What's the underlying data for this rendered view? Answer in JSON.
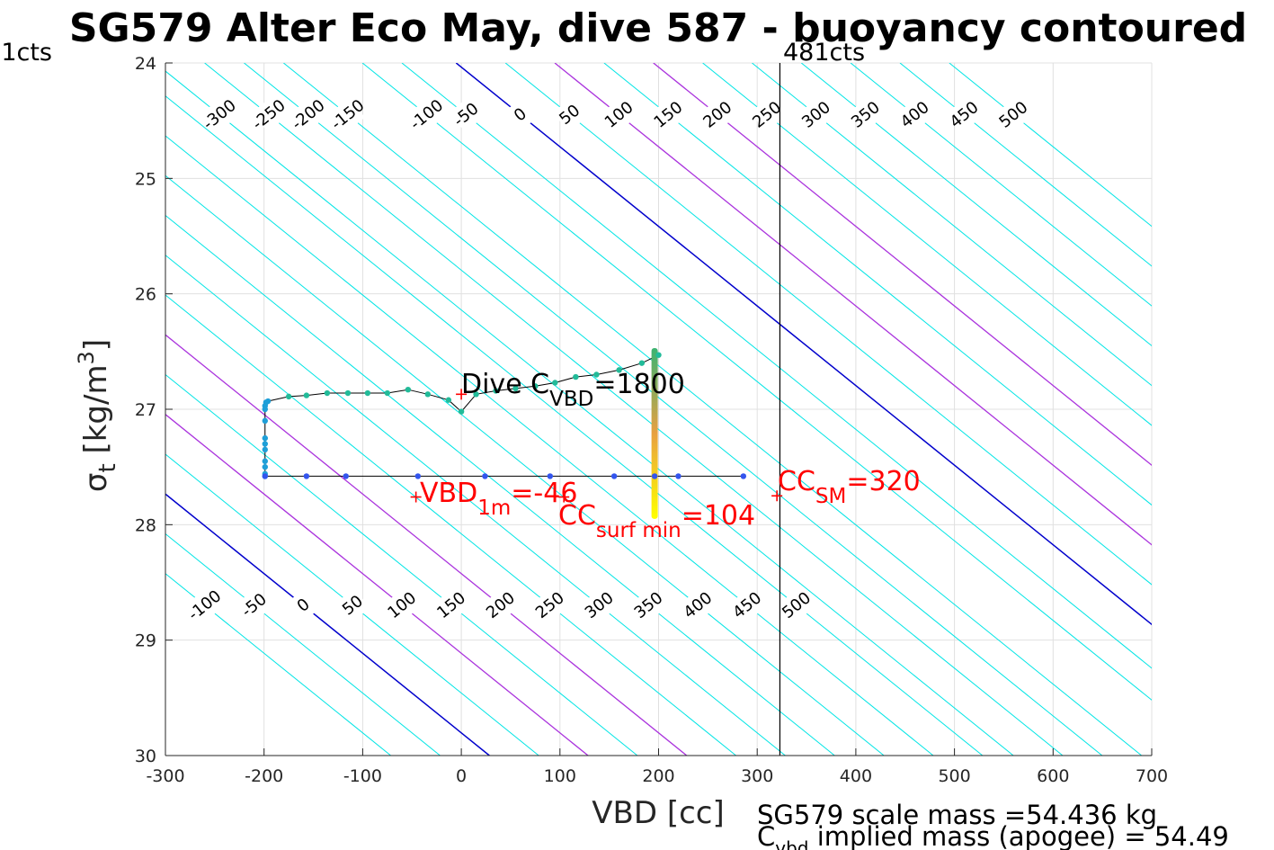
{
  "chart_data": {
    "type": "scatter",
    "title": "SG579 Alter Eco May, dive 587 - buoyancy contoured",
    "xlabel": "VBD [cc]",
    "ylabel_main": "σ",
    "ylabel_sub": "t",
    "ylabel_unit": " [kg/m",
    "ylabel_sup": "3",
    "ylabel_close": "]",
    "xlim": [
      -300,
      700
    ],
    "ylim": [
      24,
      30
    ],
    "y_reversed": true,
    "grid": true,
    "xticks": [
      -300,
      -200,
      -100,
      0,
      100,
      200,
      300,
      400,
      500,
      600,
      700
    ],
    "yticks": [
      24,
      25,
      26,
      27,
      28,
      29,
      30
    ],
    "contour_slope_cc_per_sigma": 145,
    "contours": {
      "upper_anchor_sigma": 24.45,
      "upper_labels": [
        {
          "level": -300,
          "x": -245
        },
        {
          "level": -250,
          "x": -195
        },
        {
          "level": -200,
          "x": -155
        },
        {
          "level": -150,
          "x": -115
        },
        {
          "level": -100,
          "x": -35
        },
        {
          "level": -50,
          "x": 5
        },
        {
          "level": 0,
          "x": 60
        },
        {
          "level": 50,
          "x": 110
        },
        {
          "level": 100,
          "x": 160
        },
        {
          "level": 150,
          "x": 210
        },
        {
          "level": 200,
          "x": 260
        },
        {
          "level": 250,
          "x": 310
        },
        {
          "level": 300,
          "x": 360
        },
        {
          "level": 350,
          "x": 410
        },
        {
          "level": 400,
          "x": 460
        },
        {
          "level": 450,
          "x": 510
        },
        {
          "level": 500,
          "x": 560
        }
      ],
      "lower_anchor_sigma": 28.7,
      "lower_labels": [
        {
          "level": -100,
          "x": -260
        },
        {
          "level": -50,
          "x": -210
        },
        {
          "level": 0,
          "x": -160
        },
        {
          "level": 50,
          "x": -110
        },
        {
          "level": 100,
          "x": -60
        },
        {
          "level": 150,
          "x": -10
        },
        {
          "level": 200,
          "x": 40
        },
        {
          "level": 250,
          "x": 90
        },
        {
          "level": 300,
          "x": 140
        },
        {
          "level": 350,
          "x": 190
        },
        {
          "level": 400,
          "x": 240
        },
        {
          "level": 450,
          "x": 290
        },
        {
          "level": 500,
          "x": 340
        }
      ],
      "zero_color": "#0000cc",
      "highlight_levels": [
        100,
        200
      ],
      "highlight_color": "#aa33dd",
      "other_color": "#00e5e5"
    },
    "vertical_line": {
      "x": 323,
      "label_left": "1cts",
      "label_right": "481cts"
    },
    "descent_trace": [
      {
        "x": 200,
        "y": 26.53
      },
      {
        "x": 183,
        "y": 26.6
      },
      {
        "x": 160,
        "y": 26.66
      },
      {
        "x": 137,
        "y": 26.7
      },
      {
        "x": 116,
        "y": 26.72
      },
      {
        "x": 95,
        "y": 26.77
      },
      {
        "x": 75,
        "y": 26.8
      },
      {
        "x": 55,
        "y": 26.82
      },
      {
        "x": 35,
        "y": 26.84
      },
      {
        "x": 15,
        "y": 26.87
      },
      {
        "x": 0,
        "y": 27.02
      },
      {
        "x": -13,
        "y": 26.92
      },
      {
        "x": -34,
        "y": 26.87
      },
      {
        "x": -54,
        "y": 26.83
      },
      {
        "x": -75,
        "y": 26.86
      },
      {
        "x": -95,
        "y": 26.86
      },
      {
        "x": -115,
        "y": 26.86
      },
      {
        "x": -136,
        "y": 26.86
      },
      {
        "x": -157,
        "y": 26.88
      },
      {
        "x": -175,
        "y": 26.89
      },
      {
        "x": -196,
        "y": 26.93
      },
      {
        "x": -198,
        "y": 26.94
      },
      {
        "x": -199,
        "y": 26.97
      },
      {
        "x": -199,
        "y": 27.3
      },
      {
        "x": -199,
        "y": 27.56
      },
      {
        "x": -199,
        "y": 27.58
      }
    ],
    "ascent_trace": [
      {
        "x": -199,
        "y": 27.58
      },
      {
        "x": -157,
        "y": 27.58
      },
      {
        "x": -117,
        "y": 27.58
      },
      {
        "x": -44,
        "y": 27.58
      },
      {
        "x": 24,
        "y": 27.58
      },
      {
        "x": 90,
        "y": 27.58
      },
      {
        "x": 155,
        "y": 27.58
      },
      {
        "x": 196,
        "y": 27.58
      },
      {
        "x": 220,
        "y": 27.58
      },
      {
        "x": 286,
        "y": 27.58
      }
    ],
    "surface_bar": {
      "x": 196,
      "y_start": 26.47,
      "y_end": 27.95
    },
    "markers": [
      {
        "x": 0,
        "y": 26.87,
        "color": "#ff0000"
      },
      {
        "x": -46,
        "y": 27.76,
        "color": "#ff0000"
      },
      {
        "x": 104,
        "y": 27.76,
        "color": "#ff0000"
      },
      {
        "x": 320,
        "y": 27.75,
        "color": "#ff0000"
      }
    ],
    "annotations": {
      "dive_c_vbd": {
        "main": "Dive C",
        "sub": "VBD",
        "value": "=1800"
      },
      "vbd_1m": {
        "main": "VBD",
        "sub": "1m",
        "value": "=-46"
      },
      "cc_surf_min": {
        "main": "CC",
        "sub": "surf min",
        "value": "=104"
      },
      "cc_sm": {
        "main": "CC",
        "sub": "SM",
        "value": "=320"
      }
    },
    "footer": {
      "scale_mass": "SG579 scale mass =54.436 kg",
      "implied_main": "C",
      "implied_sub": "vbd",
      "implied_text": " implied mass (apogee) = 54.49"
    },
    "colors": {
      "descent_points": "#22bb99",
      "deep_points": "#1e9fd8",
      "ascent_points": "#3355ee",
      "surface_bar_top": "#3cb371",
      "surface_bar_bottom": "#ffff00",
      "annotation_red": "#ff0000",
      "grid": "#e0e0e0"
    }
  }
}
